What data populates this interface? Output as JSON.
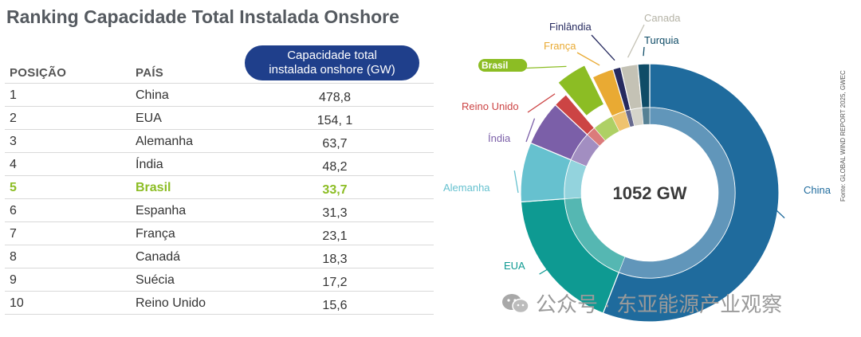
{
  "title": "Ranking Capacidade Total Instalada Onshore",
  "table": {
    "headers": {
      "position": "POSIÇÃO",
      "country": "PAÍS",
      "capacity_line1": "Capacidade total",
      "capacity_line2": "instalada onshore (GW)"
    },
    "rows": [
      {
        "position": "1",
        "country": "China",
        "value": "478,8"
      },
      {
        "position": "2",
        "country": "EUA",
        "value": "154, 1"
      },
      {
        "position": "3",
        "country": "Alemanha",
        "value": "63,7"
      },
      {
        "position": "4",
        "country": "Índia",
        "value": "48,2"
      },
      {
        "position": "5",
        "country": "Brasil",
        "value": "33,7",
        "highlight": true
      },
      {
        "position": "6",
        "country": "Espanha",
        "value": "31,3"
      },
      {
        "position": "7",
        "country": "França",
        "value": "23,1"
      },
      {
        "position": "8",
        "country": "Canadá",
        "value": "18,3"
      },
      {
        "position": "9",
        "country": "Suécia",
        "value": "17,2"
      },
      {
        "position": "10",
        "country": "Reino Unido",
        "value": "15,6"
      }
    ]
  },
  "chart_data": {
    "type": "pie",
    "variant": "donut",
    "center_label": "1052 GW",
    "slices": [
      {
        "label": "China",
        "value": 478.8,
        "color": "#1f6b9d",
        "label_color": "#1f6b9d"
      },
      {
        "label": "EUA",
        "value": 154.1,
        "color": "#0e9a92",
        "label_color": "#0e9a92"
      },
      {
        "label": "Alemanha",
        "value": 63.7,
        "color": "#66c1cf",
        "label_color": "#66c1cf"
      },
      {
        "label": "Índia",
        "value": 48.2,
        "color": "#7b5fa8",
        "label_color": "#7b5fa8"
      },
      {
        "label": "Reino Unido",
        "value": 15.6,
        "color": "#cc4444",
        "label_color": "#cc4444"
      },
      {
        "label": "Brasil",
        "value": 33.7,
        "color": "#8cbd24",
        "label_color": "#ffffff",
        "exploded": true,
        "label_badge": "#8cbd24"
      },
      {
        "label": "França",
        "value": 23.1,
        "color": "#e9aa33",
        "label_color": "#e9aa33"
      },
      {
        "label": "Finlândia",
        "value": 8.5,
        "color": "#262a5f",
        "label_color": "#262a5f"
      },
      {
        "label": "Canada",
        "value": 18.3,
        "color": "#c4c2b5",
        "label_color": "#b5b3a6"
      },
      {
        "label": "Turquia",
        "value": 12.7,
        "color": "#0f4c67",
        "label_color": "#0f4c67"
      }
    ]
  },
  "source": "Fonte: GLOBAL WIND REPORT 2025, GWEC",
  "watermark": "公众号 · 东亚能源产业观察"
}
